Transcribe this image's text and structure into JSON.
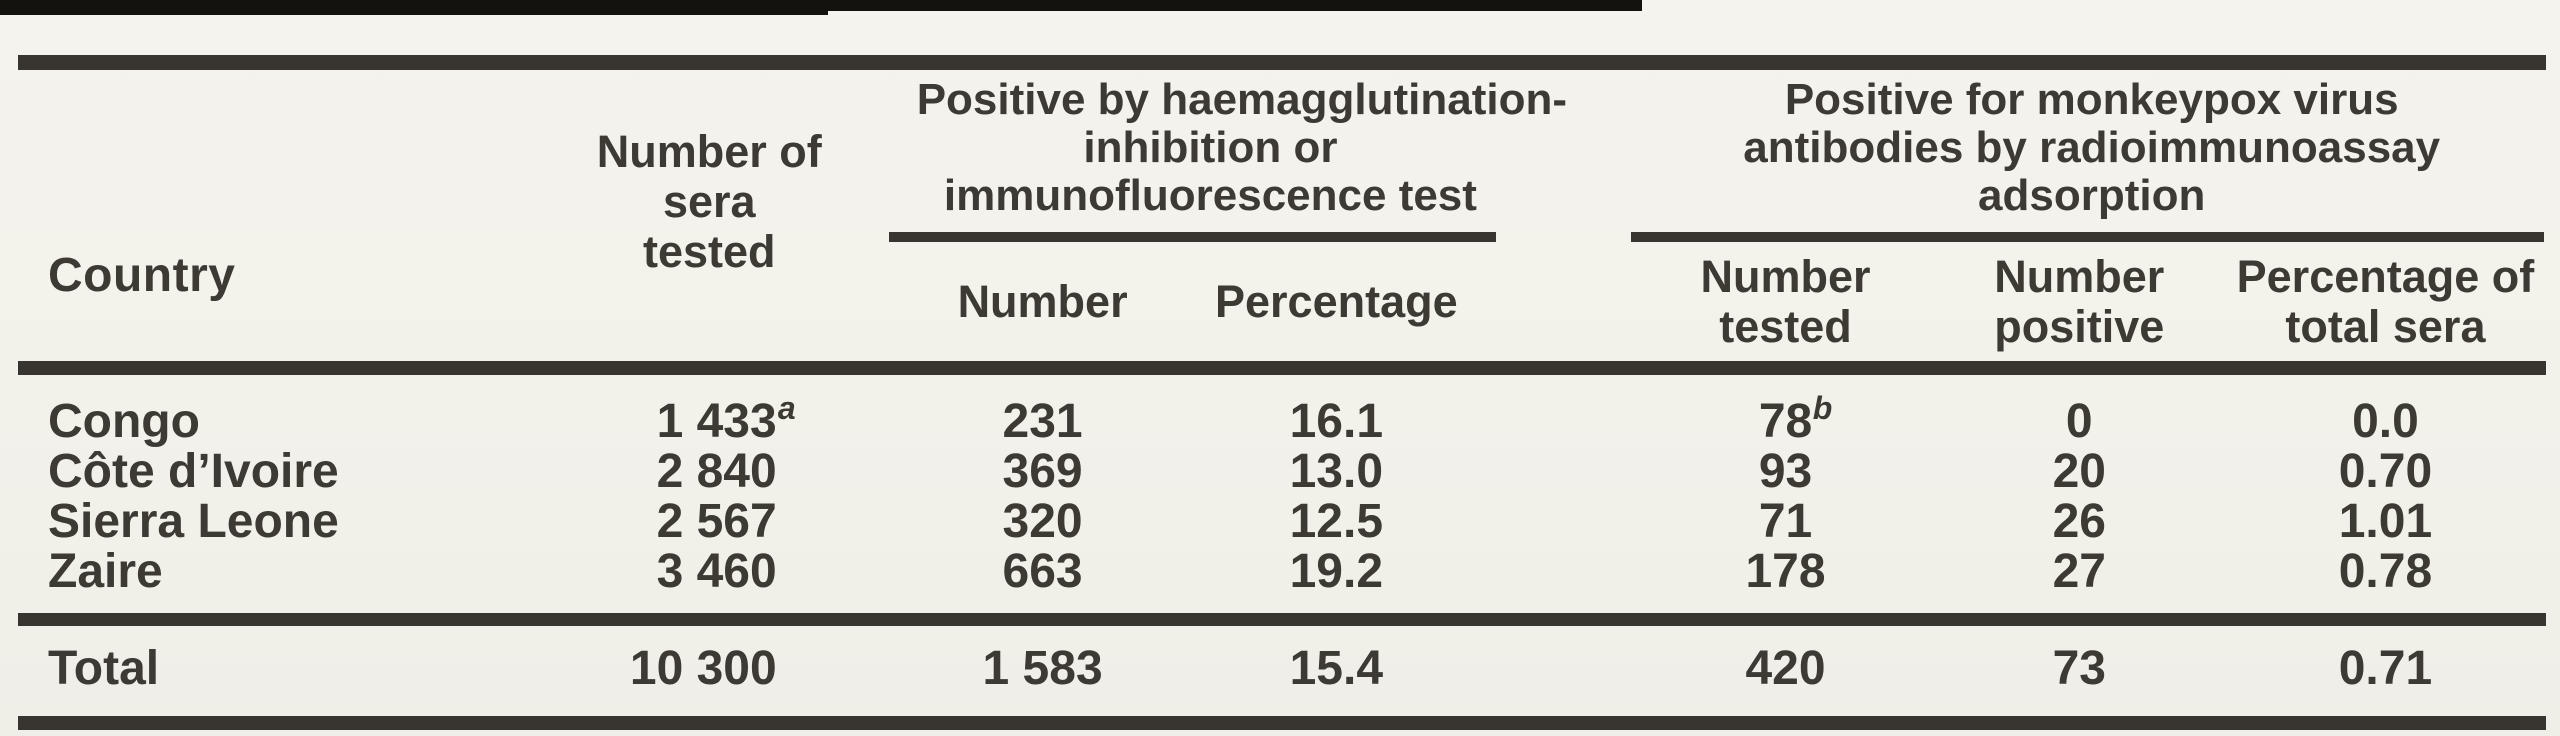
{
  "colors": {
    "paper": "#f2f1ea",
    "ink": "#383530",
    "text": "#3d3a34"
  },
  "table": {
    "header": {
      "country": "Country",
      "sera_line1": "Number of",
      "sera_line2": "sera",
      "sera_line3": "tested",
      "hi_group": {
        "title_line1": "Positive by haemagglutination-",
        "title_line2": "inhibition or",
        "title_line3": "immunofluorescence test",
        "sub_number": "Number",
        "sub_percentage": "Percentage"
      },
      "ria_group": {
        "title_line1": "Positive for monkeypox virus",
        "title_line2": "antibodies by radioimmunoassay",
        "title_line3": "adsorption",
        "sub_tested_line1": "Number",
        "sub_tested_line2": "tested",
        "sub_positive_line1": "Number",
        "sub_positive_line2": "positive",
        "sub_pct_line1": "Percentage of",
        "sub_pct_line2": "total sera"
      }
    },
    "rows": [
      {
        "country": "Congo",
        "sera": "1 433",
        "sera_sup": "a",
        "hi_number": "231",
        "hi_percentage": "16.1",
        "ria_tested": "78",
        "ria_tested_sup": "b",
        "ria_positive": "0",
        "ria_percentage": "0.0"
      },
      {
        "country": "Côte d’Ivoire",
        "sera": "2 840",
        "hi_number": "369",
        "hi_percentage": "13.0",
        "ria_tested": "93",
        "ria_positive": "20",
        "ria_percentage": "0.70"
      },
      {
        "country": "Sierra Leone",
        "sera": "2 567",
        "hi_number": "320",
        "hi_percentage": "12.5",
        "ria_tested": "71",
        "ria_positive": "26",
        "ria_percentage": "1.01"
      },
      {
        "country": "Zaire",
        "sera": "3 460",
        "hi_number": "663",
        "hi_percentage": "19.2",
        "ria_tested": "178",
        "ria_positive": "27",
        "ria_percentage": "0.78"
      }
    ],
    "total": {
      "label": "Total",
      "sera": "10 300",
      "hi_number": "1 583",
      "hi_percentage": "15.4",
      "ria_tested": "420",
      "ria_positive": "73",
      "ria_percentage": "0.71"
    }
  }
}
